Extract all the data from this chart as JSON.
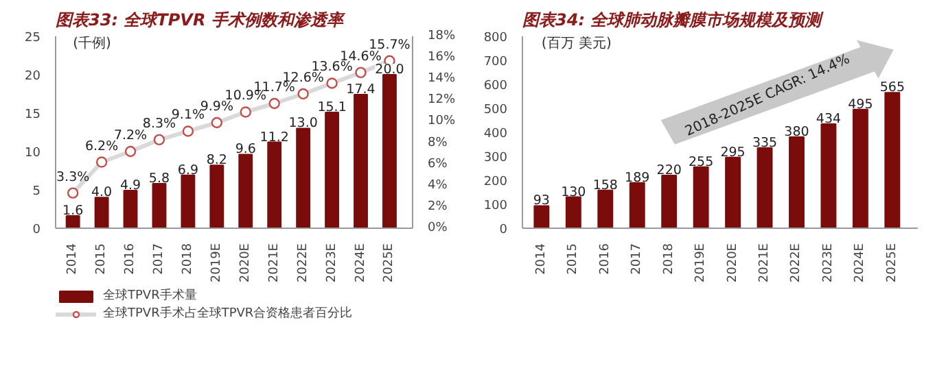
{
  "chart_data": [
    {
      "type": "bar",
      "title": "图表33: 全球TPVR 手术例数和渗透率",
      "ylabel": "(千例)",
      "categories": [
        "2014",
        "2015",
        "2016",
        "2017",
        "2018",
        "2019E",
        "2020E",
        "2021E",
        "2022E",
        "2023E",
        "2024E",
        "2025E"
      ],
      "series": [
        {
          "name": "全球TPVR手术量",
          "type": "bar",
          "color": "#7b0c0c",
          "values": [
            1.6,
            4.0,
            4.9,
            5.8,
            6.9,
            8.2,
            9.6,
            11.2,
            13.0,
            15.1,
            17.4,
            20.0
          ],
          "value_labels": [
            "1.6",
            "4.0",
            "4.9",
            "5.8",
            "6.9",
            "8.2",
            "9.6",
            "11.2",
            "13.0",
            "15.1",
            "17.4",
            "20.0"
          ]
        },
        {
          "name": "全球TPVR手术占全球TPVR合资格患者百分比",
          "type": "line",
          "axis": "y2",
          "marker": "circle",
          "color": "#d9d9d9",
          "values": [
            3.3,
            6.2,
            7.2,
            8.3,
            9.1,
            9.9,
            10.9,
            11.7,
            12.6,
            13.6,
            14.6,
            15.7
          ],
          "value_labels": [
            "3.3%",
            "6.2%",
            "7.2%",
            "8.3%",
            "9.1%",
            "9.9%",
            "10.9%",
            "11.7%",
            "12.6%",
            "13.6%",
            "14.6%",
            "15.7%"
          ]
        }
      ],
      "ylim": [
        0,
        25
      ],
      "yticks": [
        0,
        5,
        10,
        15,
        20,
        25
      ],
      "y2lim": [
        0,
        18
      ],
      "y2ticks": [
        {
          "value": 0,
          "label": "0%"
        },
        {
          "value": 2,
          "label": "2%"
        },
        {
          "value": 4,
          "label": "4%"
        },
        {
          "value": 6,
          "label": "6%"
        },
        {
          "value": 8,
          "label": "8%"
        },
        {
          "value": 10,
          "label": "10%"
        },
        {
          "value": 12,
          "label": "12%"
        },
        {
          "value": 14,
          "label": "14%"
        },
        {
          "value": 16,
          "label": "16%"
        },
        {
          "value": 18,
          "label": "18%"
        }
      ],
      "legend": "bottom"
    },
    {
      "type": "bar",
      "title": "图表34: 全球肺动脉瓣膜市场规模及预测",
      "ylabel": "(百万 美元)",
      "categories": [
        "2014",
        "2015",
        "2016",
        "2017",
        "2018",
        "2019E",
        "2020E",
        "2021E",
        "2022E",
        "2023E",
        "2024E",
        "2025E"
      ],
      "series": [
        {
          "type": "bar",
          "color": "#7b0c0c",
          "values": [
            93,
            130,
            158,
            189,
            220,
            255,
            295,
            335,
            380,
            434,
            495,
            565
          ],
          "value_labels": [
            "93",
            "130",
            "158",
            "189",
            "220",
            "255",
            "295",
            "335",
            "380",
            "434",
            "495",
            "565"
          ]
        }
      ],
      "ylim": [
        0,
        800
      ],
      "yticks": [
        0,
        100,
        200,
        300,
        400,
        500,
        600,
        700,
        800
      ],
      "annotations": [
        "2018-2025E CAGR: 14.4%"
      ]
    }
  ]
}
